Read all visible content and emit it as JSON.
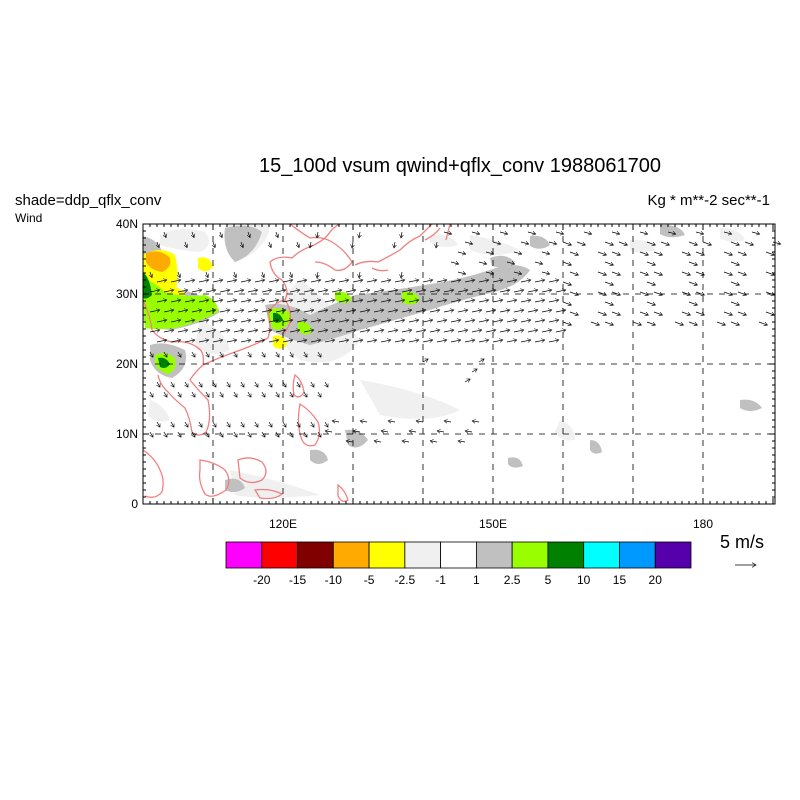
{
  "title": "15_100d vsum qwind+qflx_conv  1988061700",
  "left_label": "shade=ddp_qflx_conv",
  "sub_label": "Wind",
  "units_label": "Kg  * m**-2 sec**-1",
  "y_ticks": [
    "40N",
    "30N",
    "20N",
    "10N",
    "0"
  ],
  "x_ticks": [
    "120E",
    "150E",
    "180"
  ],
  "ref_vector_label": "5 m/s",
  "colorbar": {
    "colors": [
      "#ff00ff",
      "#ff0000",
      "#800000",
      "#ffaa00",
      "#ffff00",
      "#f0f0f0",
      "#ffffff",
      "#c0c0c0",
      "#99ff00",
      "#008000",
      "#00ffff",
      "#0099ff",
      "#5500aa"
    ],
    "labels": [
      "-20",
      "-15",
      "-10",
      "-5",
      "-2.5",
      "-1",
      "1",
      "2.5",
      "5",
      "10",
      "15",
      "20"
    ]
  },
  "colors": {
    "coastline": "#f08080",
    "gridline": "#000000"
  }
}
